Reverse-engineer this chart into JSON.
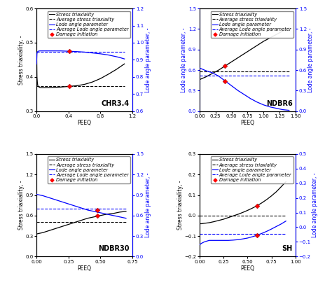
{
  "subplots": [
    {
      "label": "CHR3.4",
      "xlim": [
        0,
        1.2
      ],
      "ylim_left": [
        0.3,
        0.6
      ],
      "ylim_right": [
        0.6,
        1.2
      ],
      "yticks_left": [
        0.3,
        0.4,
        0.5,
        0.6
      ],
      "yticks_right": [
        0.6,
        0.7,
        0.8,
        0.9,
        1.0,
        1.1,
        1.2
      ],
      "xticks": [
        0,
        0.4,
        0.8,
        1.2
      ],
      "ylabel_left": "Stress triaxiality, -",
      "ylabel_right": "Lode angle parameter, -",
      "ylabel_left_color": "black",
      "ylabel_right_color": "blue",
      "stress_tri": {
        "x": [
          0.0,
          0.005,
          0.01,
          0.015,
          0.02,
          0.04,
          0.06,
          0.1,
          0.2,
          0.3,
          0.4,
          0.5,
          0.6,
          0.7,
          0.8,
          0.9,
          1.0,
          1.05,
          1.1
        ],
        "y": [
          0.49,
          0.4,
          0.385,
          0.375,
          0.372,
          0.369,
          0.368,
          0.368,
          0.369,
          0.37,
          0.372,
          0.374,
          0.378,
          0.385,
          0.395,
          0.408,
          0.422,
          0.43,
          0.438
        ]
      },
      "avg_stress_tri": {
        "x": [
          0.0,
          1.1
        ],
        "y": [
          0.372,
          0.372
        ]
      },
      "lode": {
        "x": [
          0.0,
          0.005,
          0.01,
          0.015,
          0.02,
          0.04,
          0.06,
          0.1,
          0.2,
          0.3,
          0.4,
          0.5,
          0.6,
          0.7,
          0.8,
          0.9,
          1.0,
          1.05,
          1.1
        ],
        "y": [
          0.875,
          0.935,
          0.945,
          0.948,
          0.95,
          0.952,
          0.952,
          0.952,
          0.952,
          0.952,
          0.95,
          0.948,
          0.945,
          0.94,
          0.935,
          0.928,
          0.918,
          0.912,
          0.905
        ]
      },
      "avg_lode": {
        "x": [
          0.0,
          1.1
        ],
        "y": [
          0.948,
          0.948
        ]
      },
      "damage_stress": [
        0.41,
        0.372
      ],
      "damage_lode": [
        0.41,
        0.95
      ]
    },
    {
      "label": "NDBR6",
      "xlim": [
        0,
        1.5
      ],
      "ylim_left": [
        0,
        1.5
      ],
      "ylim_right": [
        0.0,
        1.5
      ],
      "yticks_left": [
        0,
        0.3,
        0.6,
        0.9,
        1.2,
        1.5
      ],
      "yticks_right": [
        0.0,
        0.3,
        0.6,
        0.9,
        1.2,
        1.5
      ],
      "xticks": [
        0,
        0.25,
        0.5,
        0.75,
        1.0,
        1.25,
        1.5
      ],
      "ylabel_left": "Stress triaxiality, -",
      "ylabel_right": "Lode angle parameter, -",
      "ylabel_left_color": "black",
      "ylabel_right_color": "blue",
      "stress_tri": {
        "x": [
          0.0,
          0.05,
          0.1,
          0.2,
          0.3,
          0.4,
          0.5,
          0.6,
          0.7,
          0.8,
          0.9,
          1.0,
          1.1,
          1.2,
          1.3,
          1.4
        ],
        "y": [
          0.46,
          0.48,
          0.5,
          0.55,
          0.6,
          0.66,
          0.72,
          0.78,
          0.84,
          0.9,
          0.96,
          1.02,
          1.07,
          1.12,
          1.17,
          1.22
        ]
      },
      "avg_stress_tri": {
        "x": [
          0.0,
          1.4
        ],
        "y": [
          0.575,
          0.575
        ]
      },
      "lode": {
        "x": [
          0.0,
          0.05,
          0.1,
          0.2,
          0.3,
          0.4,
          0.5,
          0.6,
          0.7,
          0.8,
          0.9,
          1.0,
          1.1,
          1.2,
          1.3,
          1.4
        ],
        "y": [
          0.63,
          0.61,
          0.59,
          0.56,
          0.51,
          0.44,
          0.37,
          0.3,
          0.24,
          0.18,
          0.13,
          0.09,
          0.06,
          0.04,
          0.02,
          0.01
        ]
      },
      "avg_lode": {
        "x": [
          0.0,
          1.4
        ],
        "y": [
          0.52,
          0.52
        ]
      },
      "damage_stress": [
        0.4,
        0.66
      ],
      "damage_lode": [
        0.4,
        0.44
      ]
    },
    {
      "label": "NDBR30",
      "xlim": [
        0,
        0.75
      ],
      "ylim_left": [
        0,
        1.5
      ],
      "ylim_right": [
        0.0,
        1.5
      ],
      "yticks_left": [
        0,
        0.3,
        0.6,
        0.9,
        1.2,
        1.5
      ],
      "yticks_right": [
        0.0,
        0.3,
        0.6,
        0.9,
        1.2,
        1.5
      ],
      "xticks": [
        0,
        0.25,
        0.5,
        0.75
      ],
      "ylabel_left": "Stress triaxiality, -",
      "ylabel_right": "Lode angle parameter, -",
      "ylabel_left_color": "black",
      "ylabel_right_color": "blue",
      "stress_tri": {
        "x": [
          0.0,
          0.05,
          0.1,
          0.15,
          0.2,
          0.25,
          0.3,
          0.35,
          0.4,
          0.45,
          0.5,
          0.55,
          0.6,
          0.65,
          0.7
        ],
        "y": [
          0.33,
          0.35,
          0.38,
          0.41,
          0.44,
          0.47,
          0.5,
          0.53,
          0.56,
          0.58,
          0.6,
          0.62,
          0.63,
          0.65,
          0.66
        ]
      },
      "avg_stress_tri": {
        "x": [
          0.0,
          0.7
        ],
        "y": [
          0.505,
          0.505
        ]
      },
      "lode": {
        "x": [
          0.0,
          0.05,
          0.1,
          0.15,
          0.2,
          0.25,
          0.3,
          0.35,
          0.4,
          0.45,
          0.5,
          0.55,
          0.6,
          0.65,
          0.7
        ],
        "y": [
          0.91,
          0.89,
          0.86,
          0.83,
          0.8,
          0.77,
          0.74,
          0.71,
          0.68,
          0.66,
          0.64,
          0.62,
          0.6,
          0.58,
          0.56
        ]
      },
      "avg_lode": {
        "x": [
          0.0,
          0.7
        ],
        "y": [
          0.7,
          0.7
        ]
      },
      "damage_stress": [
        0.475,
        0.6
      ],
      "damage_lode": [
        0.475,
        0.675
      ]
    },
    {
      "label": "SH",
      "xlim": [
        0,
        1.0
      ],
      "ylim_left": [
        -0.2,
        0.3
      ],
      "ylim_right": [
        -0.2,
        0.5
      ],
      "yticks_left": [
        -0.2,
        -0.1,
        0.0,
        0.1,
        0.2,
        0.3
      ],
      "yticks_right": [
        -0.2,
        -0.1,
        0.0,
        0.1,
        0.2,
        0.3,
        0.4,
        0.5
      ],
      "xticks": [
        0,
        0.25,
        0.5,
        0.75,
        1.0
      ],
      "ylabel_left": "Stress triaxiality, -",
      "ylabel_right": "Lode angle parameter, -",
      "ylabel_left_color": "black",
      "ylabel_right_color": "blue",
      "stress_tri": {
        "x": [
          0.0,
          0.02,
          0.05,
          0.1,
          0.15,
          0.2,
          0.25,
          0.3,
          0.35,
          0.4,
          0.45,
          0.5,
          0.55,
          0.6,
          0.65,
          0.7,
          0.75,
          0.8,
          0.85,
          0.9
        ],
        "y": [
          -0.04,
          -0.04,
          -0.038,
          -0.035,
          -0.03,
          -0.024,
          -0.018,
          -0.01,
          -0.002,
          0.006,
          0.015,
          0.025,
          0.036,
          0.048,
          0.062,
          0.078,
          0.096,
          0.116,
          0.14,
          0.165
        ]
      },
      "avg_stress_tri": {
        "x": [
          0.0,
          0.9
        ],
        "y": [
          0.0,
          0.0
        ]
      },
      "lode": {
        "x": [
          0.0,
          0.02,
          0.05,
          0.1,
          0.15,
          0.2,
          0.25,
          0.3,
          0.35,
          0.4,
          0.45,
          0.5,
          0.55,
          0.6,
          0.65,
          0.7,
          0.75,
          0.8,
          0.85,
          0.9
        ],
        "y": [
          -0.12,
          -0.11,
          -0.1,
          -0.09,
          -0.09,
          -0.09,
          -0.09,
          -0.09,
          -0.088,
          -0.085,
          -0.08,
          -0.074,
          -0.065,
          -0.055,
          -0.042,
          -0.028,
          -0.012,
          0.005,
          0.022,
          0.042
        ]
      },
      "avg_lode": {
        "x": [
          0.0,
          0.9
        ],
        "y": [
          -0.045,
          -0.045
        ]
      },
      "damage_stress": [
        0.6,
        0.048
      ],
      "damage_lode": [
        0.6,
        -0.055
      ]
    }
  ],
  "xlabel": "PEEQ",
  "title_fontsize": 7,
  "label_fontsize": 5.5,
  "tick_fontsize": 5,
  "legend_fontsize": 4.8
}
